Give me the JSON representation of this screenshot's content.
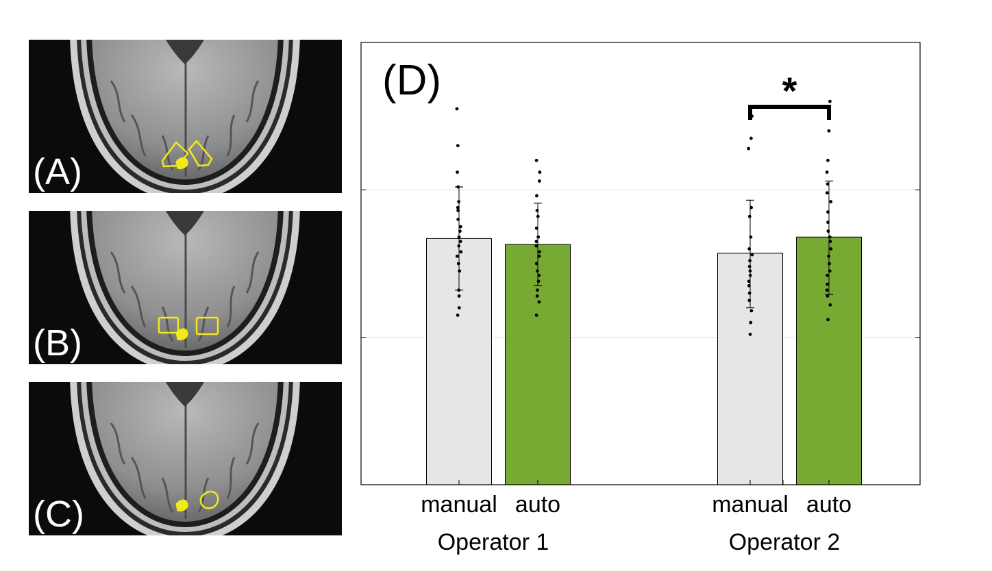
{
  "panels": [
    {
      "label": "(A)",
      "roi_shape": "polygon"
    },
    {
      "label": "(B)",
      "roi_shape": "rectangle"
    },
    {
      "label": "(C)",
      "roi_shape": "freeform"
    }
  ],
  "colors": {
    "roi": "#f2ea17",
    "manual_bar": "#e6e6e6",
    "auto_bar": "#77aa32",
    "mri_bg": "#0b0b0b"
  },
  "chart_data": {
    "type": "bar",
    "panel_label": "(D)",
    "significance_label": "*",
    "group_labels": [
      "Operator 1",
      "Operator 2"
    ],
    "bar_labels": [
      "manual",
      "auto"
    ],
    "ylim": [
      0,
      3
    ],
    "yticks": [
      1,
      2
    ],
    "grid": true,
    "series": [
      {
        "name": "manual",
        "color": "#e6e6e6",
        "values": [
          1.67,
          1.57
        ],
        "err_low": [
          1.32,
          1.2
        ],
        "err_high": [
          2.02,
          1.93
        ]
      },
      {
        "name": "auto",
        "color": "#77aa32",
        "values": [
          1.63,
          1.68
        ],
        "err_low": [
          1.35,
          1.29
        ],
        "err_high": [
          1.91,
          2.06
        ]
      }
    ],
    "points": [
      [
        [
          2.55,
          2.3,
          2.12,
          2.02,
          1.92,
          1.88,
          1.86,
          1.8,
          1.75,
          1.72,
          1.68,
          1.65,
          1.62,
          1.58,
          1.55,
          1.5,
          1.45,
          1.32,
          1.28,
          1.2,
          1.15
        ],
        [
          2.2,
          2.12,
          2.06,
          1.96,
          1.86,
          1.82,
          1.74,
          1.68,
          1.65,
          1.62,
          1.58,
          1.55,
          1.5,
          1.45,
          1.42,
          1.38,
          1.32,
          1.28,
          1.24,
          1.15
        ]
      ],
      [
        [
          2.5,
          2.35,
          2.28,
          1.88,
          1.82,
          1.68,
          1.6,
          1.56,
          1.52,
          1.48,
          1.45,
          1.42,
          1.38,
          1.35,
          1.3,
          1.25,
          1.18,
          1.1,
          1.02
        ],
        [
          2.6,
          2.52,
          2.4,
          2.2,
          2.12,
          2.04,
          1.98,
          1.92,
          1.85,
          1.78,
          1.72,
          1.68,
          1.65,
          1.6,
          1.55,
          1.5,
          1.45,
          1.42,
          1.36,
          1.32,
          1.28,
          1.22,
          1.12
        ]
      ]
    ]
  }
}
